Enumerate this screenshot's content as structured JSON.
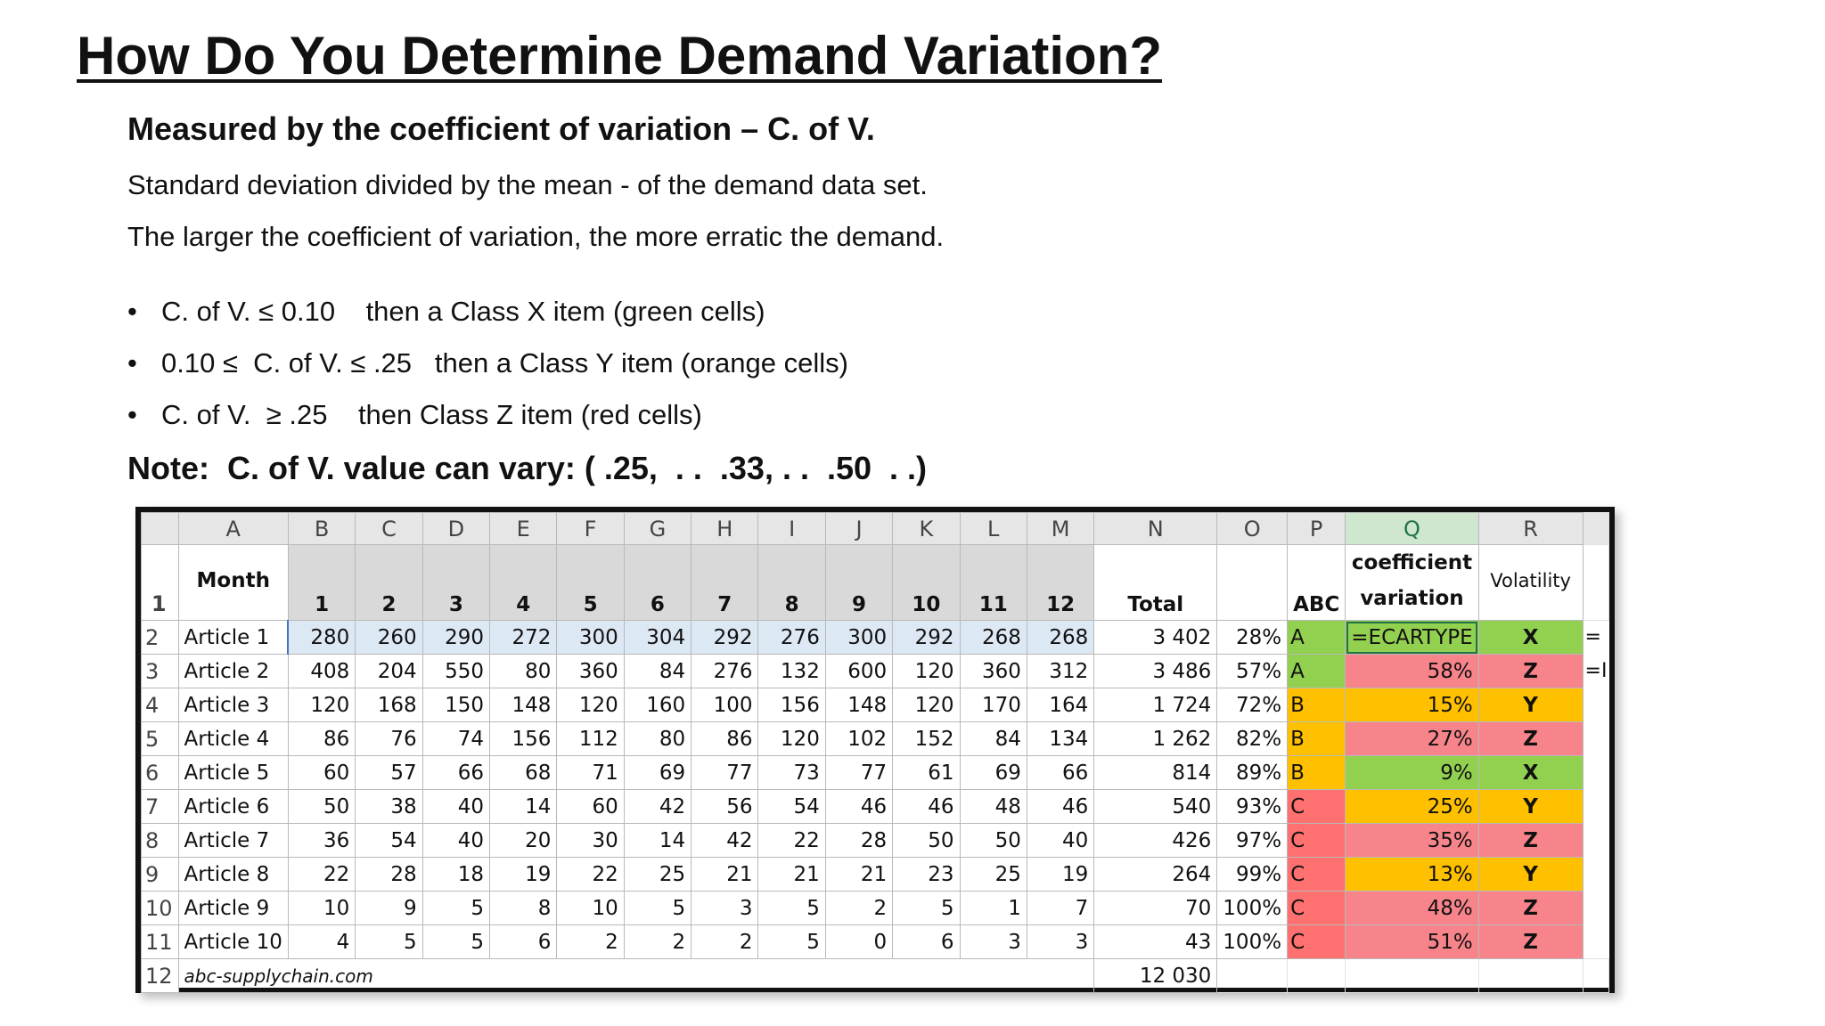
{
  "title": "How Do You Determine Demand Variation?",
  "subheading": "Measured by the coefficient of variation – C. of V.",
  "lines": [
    "Standard deviation divided by the mean - of the demand data set.",
    "The larger the coefficient of variation, the more erratic the demand."
  ],
  "bullets": [
    {
      "bullet": "•",
      "condition": "C. of V. ≤ 0.10",
      "result": "then a Class X item (green cells)"
    },
    {
      "bullet": "•",
      "condition": "0.10 ≤  C. of V. ≤ .25",
      "result": "then a Class Y item (orange cells)"
    },
    {
      "bullet": "•",
      "condition": "C. of V.  ≥ .25",
      "result": "then Class Z item (red cells)"
    }
  ],
  "note": "Note:  C. of V. value can vary: ( .25,  . .  .33, . .  .50  . .)",
  "sheet": {
    "column_letters": [
      "A",
      "B",
      "C",
      "D",
      "E",
      "F",
      "G",
      "H",
      "I",
      "J",
      "K",
      "L",
      "M",
      "N",
      "O",
      "P",
      "Q",
      "R"
    ],
    "header": {
      "row_num": "1",
      "month": "Month",
      "months": [
        "1",
        "2",
        "3",
        "4",
        "5",
        "6",
        "7",
        "8",
        "9",
        "10",
        "11",
        "12"
      ],
      "total": "Total",
      "abc": "ABC",
      "coef_line1": "coefficient",
      "coef_line2": "variation",
      "volatility": "Volatility"
    },
    "rows": [
      {
        "num": "2",
        "article": "Article 1",
        "values": [
          "280",
          "260",
          "290",
          "272",
          "300",
          "304",
          "292",
          "276",
          "300",
          "292",
          "268",
          "268"
        ],
        "total": "3 402",
        "cum": "28%",
        "abc": "A",
        "cv": "=ECARTYPE",
        "vol": "X",
        "edge": "="
      },
      {
        "num": "3",
        "article": "Article 2",
        "values": [
          "408",
          "204",
          "550",
          "80",
          "360",
          "84",
          "276",
          "132",
          "600",
          "120",
          "360",
          "312"
        ],
        "total": "3 486",
        "cum": "57%",
        "abc": "A",
        "cv": "58%",
        "vol": "Z",
        "edge": "=I"
      },
      {
        "num": "4",
        "article": "Article 3",
        "values": [
          "120",
          "168",
          "150",
          "148",
          "120",
          "160",
          "100",
          "156",
          "148",
          "120",
          "170",
          "164"
        ],
        "total": "1 724",
        "cum": "72%",
        "abc": "B",
        "cv": "15%",
        "vol": "Y",
        "edge": ""
      },
      {
        "num": "5",
        "article": "Article 4",
        "values": [
          "86",
          "76",
          "74",
          "156",
          "112",
          "80",
          "86",
          "120",
          "102",
          "152",
          "84",
          "134"
        ],
        "total": "1 262",
        "cum": "82%",
        "abc": "B",
        "cv": "27%",
        "vol": "Z",
        "edge": ""
      },
      {
        "num": "6",
        "article": "Article 5",
        "values": [
          "60",
          "57",
          "66",
          "68",
          "71",
          "69",
          "77",
          "73",
          "77",
          "61",
          "69",
          "66"
        ],
        "total": "814",
        "cum": "89%",
        "abc": "B",
        "cv": "9%",
        "vol": "X",
        "edge": ""
      },
      {
        "num": "7",
        "article": "Article 6",
        "values": [
          "50",
          "38",
          "40",
          "14",
          "60",
          "42",
          "56",
          "54",
          "46",
          "46",
          "48",
          "46"
        ],
        "total": "540",
        "cum": "93%",
        "abc": "C",
        "cv": "25%",
        "vol": "Y",
        "edge": ""
      },
      {
        "num": "8",
        "article": "Article 7",
        "values": [
          "36",
          "54",
          "40",
          "20",
          "30",
          "14",
          "42",
          "22",
          "28",
          "50",
          "50",
          "40"
        ],
        "total": "426",
        "cum": "97%",
        "abc": "C",
        "cv": "35%",
        "vol": "Z",
        "edge": ""
      },
      {
        "num": "9",
        "article": "Article 8",
        "values": [
          "22",
          "28",
          "18",
          "19",
          "22",
          "25",
          "21",
          "21",
          "21",
          "23",
          "25",
          "19"
        ],
        "total": "264",
        "cum": "99%",
        "abc": "C",
        "cv": "13%",
        "vol": "Y",
        "edge": ""
      },
      {
        "num": "10",
        "article": "Article 9",
        "values": [
          "10",
          "9",
          "5",
          "8",
          "10",
          "5",
          "3",
          "5",
          "2",
          "5",
          "1",
          "7"
        ],
        "total": "70",
        "cum": "100%",
        "abc": "C",
        "cv": "48%",
        "vol": "Z",
        "edge": ""
      },
      {
        "num": "11",
        "article": "Article 10",
        "values": [
          "4",
          "5",
          "5",
          "6",
          "2",
          "2",
          "2",
          "5",
          "0",
          "6",
          "3",
          "3"
        ],
        "total": "43",
        "cum": "100%",
        "abc": "C",
        "cv": "51%",
        "vol": "Z",
        "edge": ""
      }
    ],
    "footer": {
      "num": "12",
      "source": "abc-supplychain.com",
      "grand_total": "12 030"
    }
  }
}
